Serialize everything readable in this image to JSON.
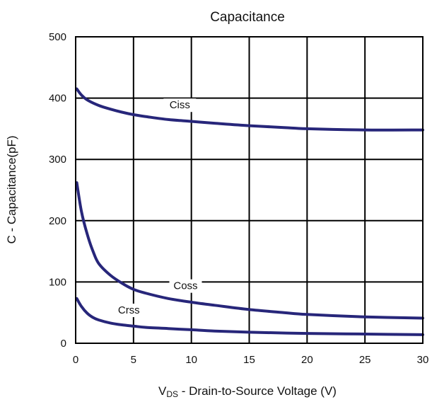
{
  "chart_data": {
    "type": "line",
    "title": "Capacitance",
    "xlabel_prefix": "V",
    "xlabel_sub": "DS",
    "xlabel_rest": " - Drain-to-Source Voltage (V)",
    "ylabel": "C - Capacitance(pF)",
    "xlim": [
      0,
      30
    ],
    "ylim": [
      0,
      500
    ],
    "xticks": [
      0,
      5,
      10,
      15,
      20,
      25,
      30
    ],
    "yticks": [
      0,
      100,
      200,
      300,
      400,
      500
    ],
    "grid": true,
    "line_color": "#27267a",
    "series": [
      {
        "name": "Ciss",
        "x": [
          0.1,
          0.5,
          1,
          2,
          3,
          4,
          5,
          6,
          8,
          10,
          12,
          15,
          18,
          20,
          25,
          30
        ],
        "y": [
          415,
          405,
          397,
          388,
          382,
          377,
          373,
          370,
          365,
          362,
          359,
          355,
          352,
          350,
          348,
          348
        ]
      },
      {
        "name": "Coss",
        "x": [
          0.1,
          0.5,
          1,
          1.5,
          2,
          3,
          4,
          5,
          6,
          8,
          10,
          12,
          15,
          18,
          20,
          25,
          30
        ],
        "y": [
          262,
          215,
          178,
          150,
          130,
          111,
          98,
          88,
          82,
          73,
          67,
          62,
          55,
          50,
          47,
          43,
          41
        ]
      },
      {
        "name": "Crss",
        "x": [
          0.1,
          0.5,
          1,
          1.5,
          2,
          3,
          4,
          5,
          6,
          8,
          10,
          12,
          15,
          20,
          25,
          30
        ],
        "y": [
          73,
          60,
          49,
          42,
          38,
          33,
          30,
          28,
          26,
          24,
          22,
          20,
          18,
          16,
          15,
          14
        ]
      }
    ]
  }
}
